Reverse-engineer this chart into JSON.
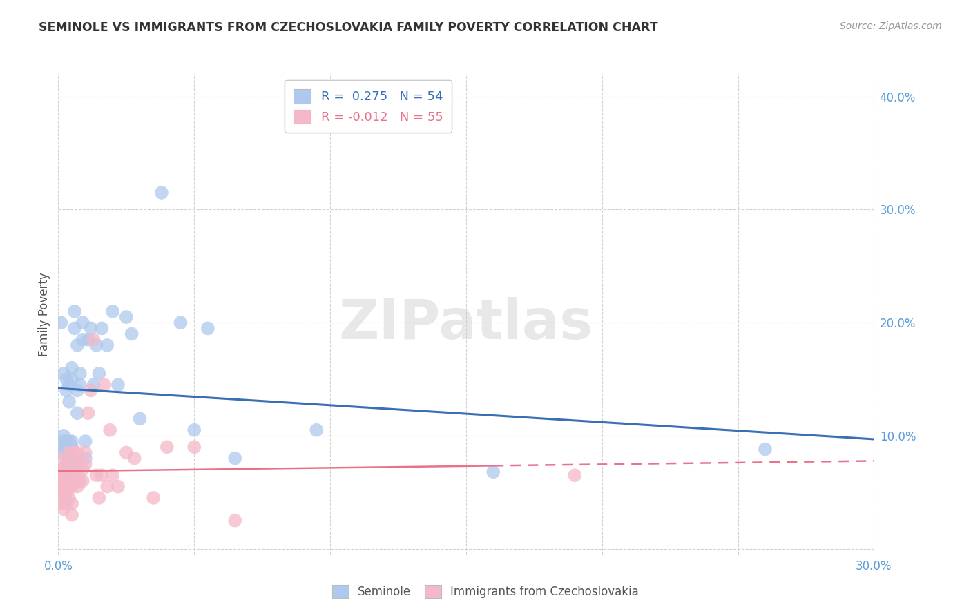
{
  "title": "SEMINOLE VS IMMIGRANTS FROM CZECHOSLOVAKIA FAMILY POVERTY CORRELATION CHART",
  "source": "Source: ZipAtlas.com",
  "ylabel": "Family Poverty",
  "xlim": [
    0.0,
    0.3
  ],
  "ylim": [
    -0.005,
    0.42
  ],
  "xticks": [
    0.0,
    0.05,
    0.1,
    0.15,
    0.2,
    0.25,
    0.3
  ],
  "yticks": [
    0.0,
    0.1,
    0.2,
    0.3,
    0.4
  ],
  "legend_label_blue": "Seminole",
  "legend_label_pink": "Immigrants from Czechoslovakia",
  "R_blue": 0.275,
  "N_blue": 54,
  "R_pink": -0.012,
  "N_pink": 55,
  "blue_color": "#aec9ed",
  "pink_color": "#f4b8c8",
  "line_blue": "#3a6fb5",
  "line_pink": "#e8728a",
  "background_color": "#ffffff",
  "watermark": "ZIPatlas",
  "blue_x": [
    0.001,
    0.001,
    0.002,
    0.002,
    0.002,
    0.002,
    0.003,
    0.003,
    0.003,
    0.003,
    0.003,
    0.003,
    0.004,
    0.004,
    0.004,
    0.004,
    0.004,
    0.005,
    0.005,
    0.005,
    0.005,
    0.005,
    0.006,
    0.006,
    0.006,
    0.007,
    0.007,
    0.007,
    0.008,
    0.008,
    0.009,
    0.009,
    0.01,
    0.01,
    0.011,
    0.012,
    0.013,
    0.014,
    0.015,
    0.016,
    0.018,
    0.02,
    0.022,
    0.025,
    0.027,
    0.03,
    0.038,
    0.045,
    0.05,
    0.055,
    0.065,
    0.095,
    0.16,
    0.26
  ],
  "blue_y": [
    0.085,
    0.2,
    0.09,
    0.095,
    0.1,
    0.155,
    0.065,
    0.075,
    0.09,
    0.095,
    0.14,
    0.15,
    0.08,
    0.09,
    0.095,
    0.13,
    0.145,
    0.08,
    0.09,
    0.095,
    0.15,
    0.16,
    0.075,
    0.195,
    0.21,
    0.12,
    0.14,
    0.18,
    0.145,
    0.155,
    0.185,
    0.2,
    0.08,
    0.095,
    0.185,
    0.195,
    0.145,
    0.18,
    0.155,
    0.195,
    0.18,
    0.21,
    0.145,
    0.205,
    0.19,
    0.115,
    0.315,
    0.2,
    0.105,
    0.195,
    0.08,
    0.105,
    0.068,
    0.088
  ],
  "pink_x": [
    0.001,
    0.001,
    0.001,
    0.001,
    0.001,
    0.001,
    0.002,
    0.002,
    0.002,
    0.002,
    0.002,
    0.002,
    0.003,
    0.003,
    0.003,
    0.003,
    0.003,
    0.004,
    0.004,
    0.004,
    0.004,
    0.005,
    0.005,
    0.005,
    0.005,
    0.006,
    0.006,
    0.006,
    0.007,
    0.007,
    0.007,
    0.008,
    0.008,
    0.009,
    0.009,
    0.01,
    0.01,
    0.011,
    0.012,
    0.013,
    0.014,
    0.015,
    0.016,
    0.017,
    0.018,
    0.019,
    0.02,
    0.022,
    0.025,
    0.028,
    0.035,
    0.04,
    0.05,
    0.065,
    0.19
  ],
  "pink_y": [
    0.04,
    0.05,
    0.055,
    0.06,
    0.065,
    0.07,
    0.035,
    0.045,
    0.055,
    0.06,
    0.07,
    0.08,
    0.04,
    0.05,
    0.06,
    0.065,
    0.075,
    0.045,
    0.055,
    0.065,
    0.085,
    0.03,
    0.04,
    0.055,
    0.065,
    0.065,
    0.075,
    0.085,
    0.055,
    0.065,
    0.085,
    0.06,
    0.075,
    0.06,
    0.07,
    0.075,
    0.085,
    0.12,
    0.14,
    0.185,
    0.065,
    0.045,
    0.065,
    0.145,
    0.055,
    0.105,
    0.065,
    0.055,
    0.085,
    0.08,
    0.045,
    0.09,
    0.09,
    0.025,
    0.065
  ]
}
